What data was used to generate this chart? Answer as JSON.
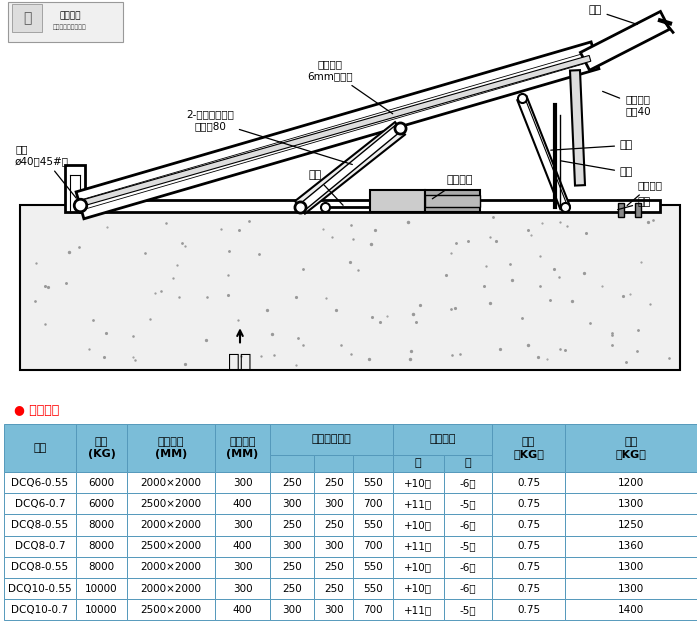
{
  "tech_params_label": "● 技术参数",
  "table_data": [
    [
      "DCQ6-0.55",
      "6000",
      "2000×2000",
      "300",
      "250",
      "250",
      "550",
      "+10度",
      "-6度",
      "0.75",
      "1200"
    ],
    [
      "DCQ6-0.7",
      "6000",
      "2500×2000",
      "400",
      "300",
      "300",
      "700",
      "+11度",
      "-5度",
      "0.75",
      "1300"
    ],
    [
      "DCQ8-0.55",
      "8000",
      "2000×2000",
      "300",
      "250",
      "250",
      "550",
      "+10度",
      "-6度",
      "0.75",
      "1250"
    ],
    [
      "DCQ8-0.7",
      "8000",
      "2500×2000",
      "400",
      "300",
      "300",
      "700",
      "+11度",
      "-5度",
      "0.75",
      "1360"
    ],
    [
      "DCQ8-0.55",
      "8000",
      "2000×2000",
      "300",
      "250",
      "250",
      "550",
      "+10度",
      "-6度",
      "0.75",
      "1300"
    ],
    [
      "DCQ10-0.55",
      "10000",
      "2000×2000",
      "300",
      "250",
      "250",
      "550",
      "+10度",
      "-6度",
      "0.75",
      "1300"
    ],
    [
      "DCQ10-0.7",
      "10000",
      "2500×2000",
      "400",
      "300",
      "300",
      "700",
      "+11度",
      "-5度",
      "0.75",
      "1400"
    ]
  ],
  "header_bg": "#7BBDD8",
  "header_sub_bg": "#9DCDE3",
  "border_color": "#5599BB",
  "text_color_red": "#FF0000",
  "bg_color": "#FFFFFF",
  "lbl_shuban": "舌板",
  "lbl_shuban_yougang": "舌板油缸\n缸彤40",
  "lbl_zhicheng": "支撑",
  "lbl_qunban": "裙板",
  "lbl_weixiu": "维修支腿",
  "lbl_dijia": "底架",
  "lbl_gongzuo": "工作面板\n6mm花纹板",
  "lbl_2mianban": "2-面板液压油缸\n缸径：80",
  "lbl_zhouxiao": "轴销\nø40，45#锤",
  "lbl_youguan": "油管",
  "lbl_yeya": "液压泵站",
  "lbl_huotai": "货台",
  "hdr_xingHao": "型号",
  "hdr_zaHe": "载荷\n(KG)",
  "hdr_pingtai": "平台尺寸\n(MM)",
  "hdr_cengban": "层板宽度\n(MM)",
  "hdr_xiaxia": "下下调节范围",
  "hdr_qingxie": "倾斜角度",
  "hdr_gonglv": "功率\n（KG）",
  "hdr_zizhong": "自重\n（KG）",
  "hdr_shang": "上",
  "hdr_xia": "下"
}
